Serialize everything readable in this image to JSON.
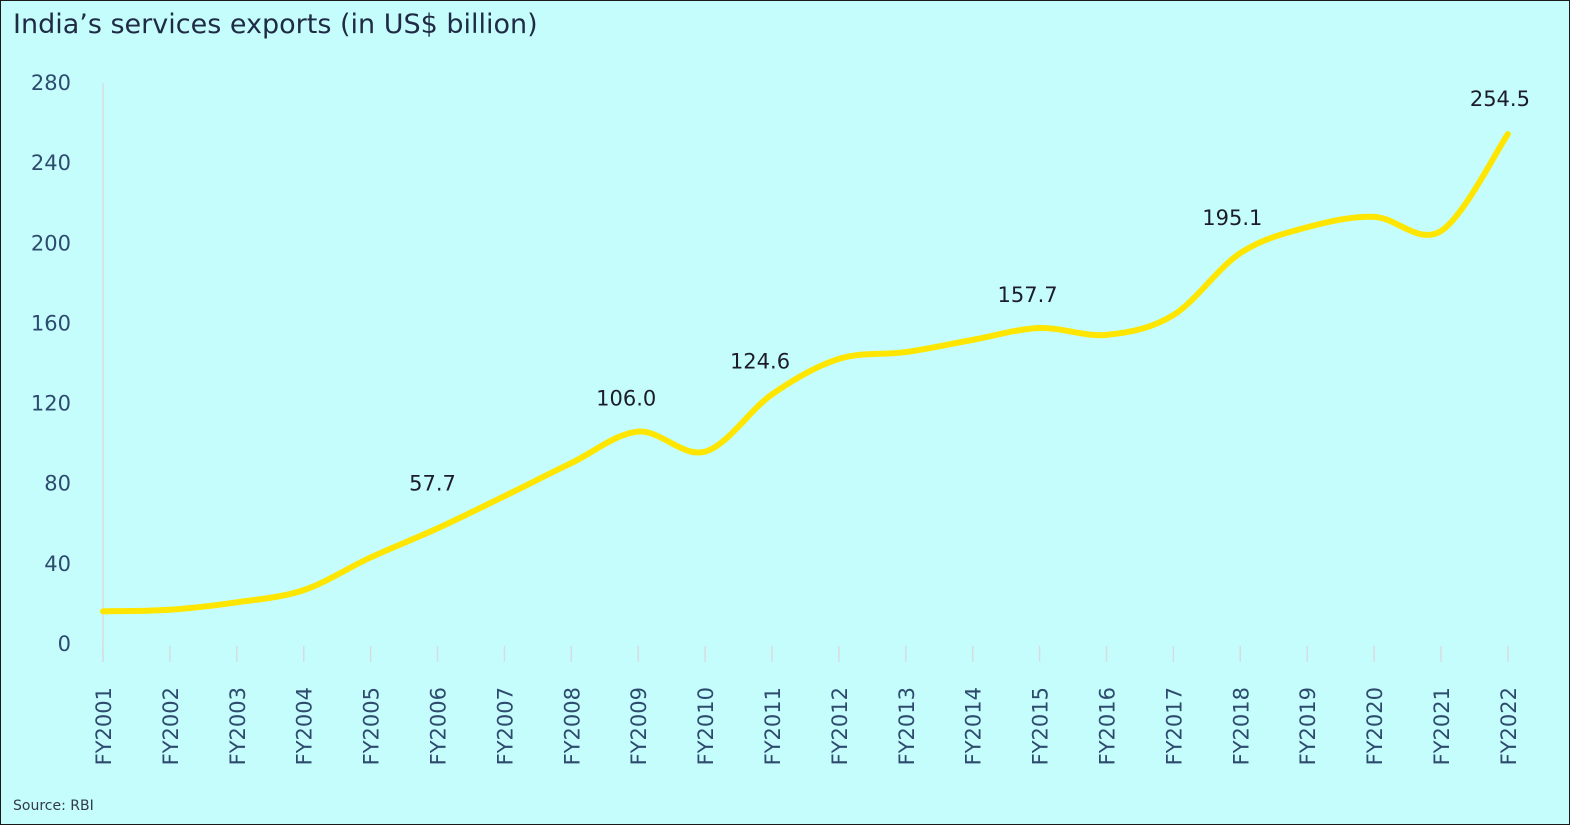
{
  "chart_data": {
    "type": "line",
    "title": "India’s services exports (in US$ billion)",
    "source": "Source: RBI",
    "categories": [
      "FY2001",
      "FY2002",
      "FY2003",
      "FY2004",
      "FY2005",
      "FY2006",
      "FY2007",
      "FY2008",
      "FY2009",
      "FY2010",
      "FY2011",
      "FY2012",
      "FY2013",
      "FY2014",
      "FY2015",
      "FY2016",
      "FY2017",
      "FY2018",
      "FY2019",
      "FY2020",
      "FY2021",
      "FY2022"
    ],
    "series": [
      {
        "values": [
          16.3,
          17.1,
          20.8,
          26.9,
          43.2,
          57.7,
          73.8,
          90.3,
          106.0,
          96.0,
          124.6,
          142.3,
          145.7,
          151.8,
          157.7,
          154.3,
          164.2,
          195.1,
          208.0,
          213.2,
          206.1,
          254.5
        ]
      }
    ],
    "data_labels": [
      {
        "category": "FY2006",
        "text": "57.7"
      },
      {
        "category": "FY2009",
        "text": "106.0"
      },
      {
        "category": "FY2011",
        "text": "124.6"
      },
      {
        "category": "FY2015",
        "text": "157.7"
      },
      {
        "category": "FY2018",
        "text": "195.1"
      },
      {
        "category": "FY2022",
        "text": "254.5"
      }
    ],
    "yticks": [
      0,
      40,
      80,
      120,
      160,
      200,
      240,
      280
    ],
    "ylim": [
      0,
      280
    ],
    "line_color": "#ffe600",
    "background": "#c5fdfd",
    "grid": false
  }
}
